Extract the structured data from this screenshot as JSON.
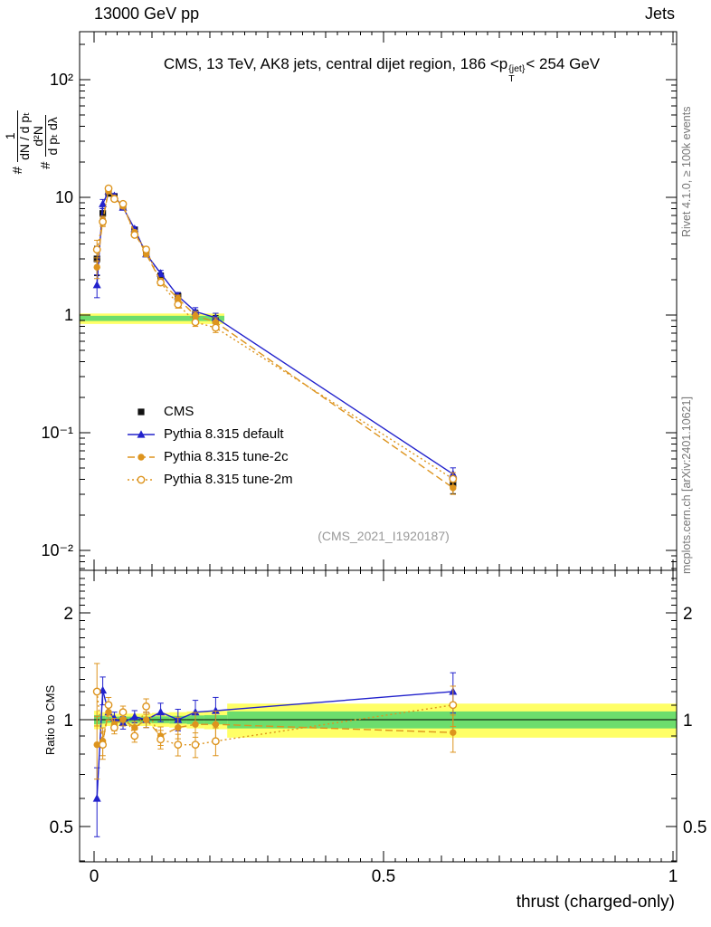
{
  "header": {
    "left_label": "13000 GeV pp",
    "right_label": "Jets"
  },
  "panel_title": {
    "pre": "CMS, 13 TeV, AK8 jets, central dijet region, 186 <p",
    "sup": "{jet}",
    "sub": "T",
    "post": "< 254 GeV"
  },
  "ylabel_main": {
    "term1_prefix": "#",
    "term1_num": "1",
    "term1_den": "dN / d pₜ",
    "term2_prefix": "#",
    "term2_num": "d²N",
    "term2_den": "d pₜ dλ"
  },
  "ylabel_ratio": "Ratio to CMS",
  "xlabel": "thrust (charged-only)",
  "watermark": "(CMS_2021_I1920187)",
  "credits": {
    "rivet": "Rivet 4.1.0, ≥ 100k events",
    "mcplots": "mcplots.cern.ch [arXiv:2401.10621]"
  },
  "chart_data": {
    "type": "line",
    "title": "CMS, 13 TeV, AK8 jets, central dijet region, 186 < pT{jet} < 254 GeV",
    "xlabel": "thrust (charged-only)",
    "ylabel": "# 1/(dN/dpT) d²N/(dpT dλ)",
    "ratio_ylabel": "Ratio to CMS",
    "y_log": true,
    "xlim": [
      0,
      1
    ],
    "ylim_main": [
      0.0068,
      254
    ],
    "ylim_ratio": [
      0.4,
      2.6
    ],
    "x_ticks": [
      {
        "v": 0,
        "label": "0"
      },
      {
        "v": 0.5,
        "label": "0.5"
      },
      {
        "v": 1,
        "label": "1"
      }
    ],
    "y_ticks_main": [
      {
        "v": 100,
        "label": "10²"
      },
      {
        "v": 10,
        "label": "10"
      },
      {
        "v": 1,
        "label": "1"
      },
      {
        "v": 0.1,
        "label": "10⁻¹"
      },
      {
        "v": 0.01,
        "label": "10⁻²"
      }
    ],
    "y_ticks_ratio": [
      {
        "v": 0.5,
        "label": "0.5"
      },
      {
        "v": 1,
        "label": "1"
      },
      {
        "v": 2,
        "label": "2"
      }
    ],
    "x": [
      0.005,
      0.015,
      0.025,
      0.035,
      0.05,
      0.07,
      0.09,
      0.115,
      0.145,
      0.175,
      0.21,
      0.62
    ],
    "series": [
      {
        "name": "CMS",
        "color": "#111111",
        "marker": "square",
        "line": "none",
        "values": [
          3.0,
          7.3,
          10.8,
          10.2,
          8.4,
          5.3,
          3.3,
          2.15,
          1.45,
          1.02,
          0.9,
          0.037
        ],
        "yerr_frac": [
          0.28,
          0.1,
          0.05,
          0.04,
          0.04,
          0.04,
          0.05,
          0.06,
          0.07,
          0.08,
          0.1,
          0.18
        ]
      },
      {
        "name": "Pythia 8.315 default",
        "color": "#2222cc",
        "marker": "triangle",
        "line": "solid",
        "values": [
          1.8,
          8.8,
          11.3,
          10.3,
          8.2,
          5.4,
          3.3,
          2.26,
          1.45,
          1.07,
          0.95,
          0.0445
        ],
        "ratio": [
          0.6,
          1.21,
          1.05,
          1.01,
          0.98,
          1.02,
          1.0,
          1.05,
          1.0,
          1.05,
          1.06,
          1.2
        ],
        "yerr_frac": [
          0.22,
          0.09,
          0.05,
          0.04,
          0.04,
          0.04,
          0.05,
          0.06,
          0.07,
          0.08,
          0.09,
          0.13
        ]
      },
      {
        "name": "Pythia 8.315 tune-2c",
        "color": "#dd941e",
        "marker": "circle-filled",
        "line": "dashed",
        "values": [
          2.55,
          6.35,
          11.3,
          9.9,
          8.4,
          5.05,
          3.3,
          1.94,
          1.38,
          0.99,
          0.87,
          0.034
        ],
        "ratio": [
          0.85,
          0.87,
          1.05,
          0.97,
          1.0,
          0.95,
          1.0,
          0.9,
          0.95,
          0.97,
          0.97,
          0.92
        ],
        "yerr_frac": [
          0.2,
          0.09,
          0.05,
          0.04,
          0.04,
          0.04,
          0.05,
          0.06,
          0.07,
          0.08,
          0.09,
          0.12
        ]
      },
      {
        "name": "Pythia 8.315 tune-2m",
        "color": "#dd941e",
        "marker": "circle-open",
        "line": "dotted",
        "values": [
          3.6,
          6.2,
          11.9,
          9.7,
          8.8,
          4.8,
          3.6,
          1.89,
          1.23,
          0.87,
          0.78,
          0.0405
        ],
        "ratio": [
          1.2,
          0.85,
          1.1,
          0.95,
          1.05,
          0.9,
          1.09,
          0.88,
          0.85,
          0.85,
          0.87,
          1.1
        ],
        "yerr_frac": [
          0.2,
          0.09,
          0.05,
          0.04,
          0.04,
          0.04,
          0.05,
          0.06,
          0.07,
          0.08,
          0.09,
          0.13
        ]
      }
    ],
    "ratio_band": {
      "edges": [
        0.0,
        0.01,
        0.02,
        0.03,
        0.04,
        0.06,
        0.08,
        0.1,
        0.13,
        0.16,
        0.19,
        0.23,
        1.0
      ],
      "yellow": [
        0.06,
        0.05,
        0.04,
        0.04,
        0.04,
        0.04,
        0.04,
        0.045,
        0.05,
        0.055,
        0.06,
        0.11
      ],
      "green": [
        0.03,
        0.025,
        0.02,
        0.02,
        0.02,
        0.02,
        0.02,
        0.022,
        0.025,
        0.028,
        0.03,
        0.055
      ]
    },
    "main_band": {
      "x1": 0.0,
      "x2": 0.225,
      "yellow_lo": 0.84,
      "yellow_hi": 1.03,
      "green_lo": 0.89,
      "green_hi": 0.985
    },
    "band_colors": {
      "yellow": "#ffff66",
      "green": "#6ddd6d"
    }
  }
}
